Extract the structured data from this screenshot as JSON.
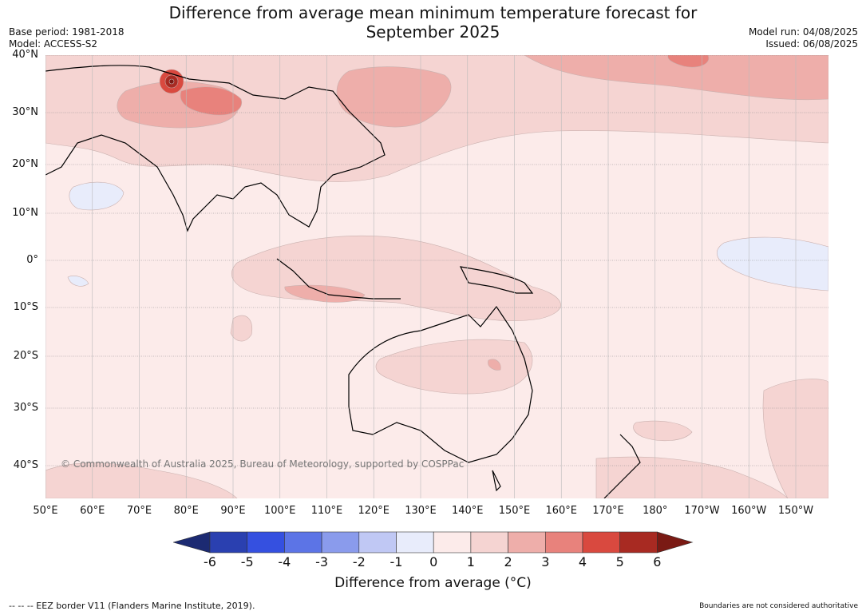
{
  "title_line1": "Difference from average mean minimum temperature forecast for",
  "title_line2": "September 2025",
  "meta_left": [
    "Base period: 1981-2018",
    "Model: ACCESS-S2"
  ],
  "meta_right": [
    "Model run: 04/08/2025",
    "Issued: 06/08/2025"
  ],
  "latitude_labels": [
    "40°N",
    "30°N",
    "20°N",
    "10°N",
    "0°",
    "10°S",
    "20°S",
    "30°S",
    "40°S"
  ],
  "longitude_labels": [
    "50°E",
    "60°E",
    "70°E",
    "80°E",
    "90°E",
    "100°E",
    "110°E",
    "120°E",
    "130°E",
    "140°E",
    "150°E",
    "160°E",
    "170°E",
    "180°",
    "170°W",
    "160°W",
    "150°W"
  ],
  "copyright": "© Commonwealth of Australia 2025, Bureau of Meteorology, supported by COSPPac",
  "colorbar": {
    "title": "Difference from average (°C)",
    "labels": [
      "-6",
      "-5",
      "-4",
      "-3",
      "-2",
      "-1",
      "0",
      "1",
      "2",
      "3",
      "4",
      "5",
      "6"
    ],
    "colors": [
      "#1c2a72",
      "#2a40b0",
      "#3550e0",
      "#5c74e6",
      "#8a9bec",
      "#c0c8f4",
      "#e8ecfb",
      "#fcebea",
      "#f5d4d2",
      "#eeaeaa",
      "#e8827c",
      "#d9493f",
      "#a82a22",
      "#7a1a14"
    ]
  },
  "footer_left": "--  --  -- EEZ border V11 (Flanders Marine Institute, 2019).",
  "footer_right": "Boundaries are not considered authoritative"
}
